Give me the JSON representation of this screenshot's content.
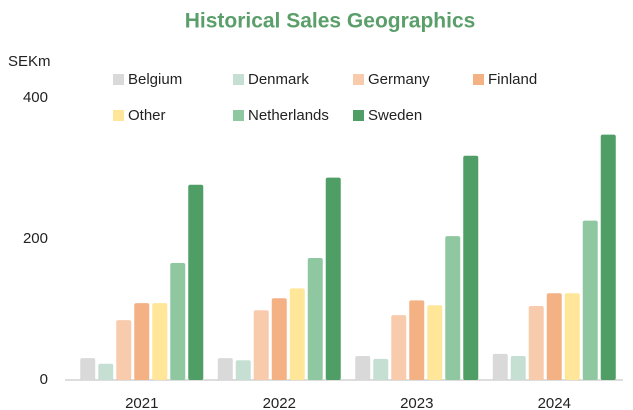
{
  "chart_data": {
    "type": "bar",
    "title": "Historical Sales Geographics",
    "y_label": "SEKm",
    "categories": [
      "2021",
      "2022",
      "2023",
      "2024"
    ],
    "series": [
      {
        "name": "Belgium",
        "color": "#d9d9d9",
        "values": [
          31,
          31,
          34,
          37
        ]
      },
      {
        "name": "Denmark",
        "color": "#c5e0d2",
        "values": [
          23,
          28,
          30,
          34
        ]
      },
      {
        "name": "Germany",
        "color": "#f8cbad",
        "values": [
          85,
          99,
          92,
          105
        ]
      },
      {
        "name": "Finland",
        "color": "#f4b183",
        "values": [
          109,
          116,
          113,
          123
        ]
      },
      {
        "name": "Other",
        "color": "#ffe699",
        "values": [
          109,
          130,
          106,
          123
        ]
      },
      {
        "name": "Netherlands",
        "color": "#8fc8a0",
        "values": [
          166,
          173,
          204,
          226
        ]
      },
      {
        "name": "Sweden",
        "color": "#4e9e65",
        "values": [
          277,
          287,
          318,
          348
        ]
      }
    ],
    "ylim": [
      0,
      400
    ],
    "yticks": [
      0,
      200,
      400
    ],
    "grid": false
  }
}
